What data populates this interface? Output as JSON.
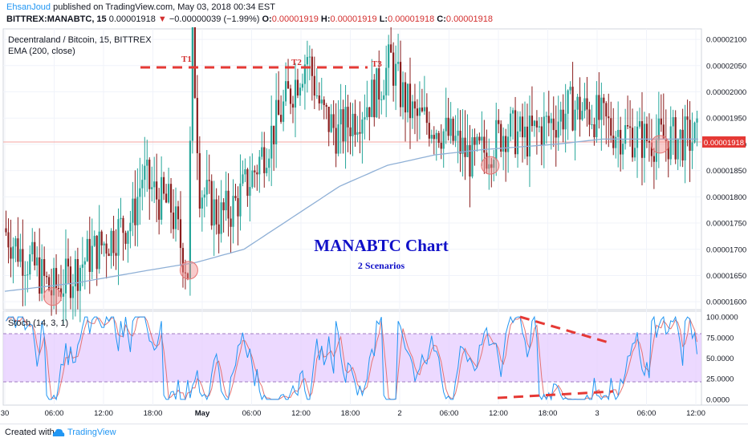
{
  "header": {
    "author": "EhsanJoud",
    "published": "published on TradingView.com, May 03, 2018 00:34 EST",
    "symbol": "BITTREX:MANABTC, 15",
    "price": "0.00001918",
    "change_arrow": "▼",
    "change": "−0.00000039 (−1.99%)",
    "ohlc": [
      {
        "label": "O:",
        "value": "0.00001919"
      },
      {
        "label": "H:",
        "value": "0.00001919"
      },
      {
        "label": "L:",
        "value": "0.00001918"
      },
      {
        "label": "C:",
        "value": "0.00001918"
      }
    ]
  },
  "legend": {
    "title": "Decentraland / Bitcoin, 15, BITTREX",
    "indicator": "EMA (200, close)",
    "stoch": "Stoch (14, 3, 1)"
  },
  "annotations": {
    "title": "MANABTC Chart",
    "subtitle": "2 Scenarios",
    "tops": [
      "T1",
      "T2",
      "T3"
    ],
    "last_price_tag": "0.00001918"
  },
  "footer": {
    "created_with": "Created with",
    "brand": "TradingView"
  },
  "colors": {
    "up": "#26a69a",
    "down": "#8b1e1e",
    "ema": "#8fb0d6",
    "stoch_k": "#2196f3",
    "stoch_d": "#e57373",
    "stoch_band": "#e6ccff",
    "annotation_red": "#e53935",
    "title_blue": "#1010c8",
    "circle": "#f28b8b"
  },
  "chart_data": [
    {
      "type": "candlestick",
      "title": "Decentraland / Bitcoin, 15, BITTREX",
      "x_ticks": [
        "30",
        "06:00",
        "12:00",
        "18:00",
        "May",
        "06:00",
        "12:00",
        "18:00",
        "2",
        "06:00",
        "12:00",
        "18:00",
        "3",
        "06:00",
        "12:00"
      ],
      "y_ticks": [
        "0.00002100",
        "0.00002050",
        "0.00002000",
        "0.00001950",
        "0.00001900",
        "0.00001850",
        "0.00001800",
        "0.00001750",
        "0.00001700",
        "0.00001650",
        "0.00001600"
      ],
      "ylim": [
        1.585e-05,
        2.12e-05
      ],
      "last_price": 1.918e-05,
      "price_path": [
        [
          0,
          1.74e-05
        ],
        [
          6,
          1.7e-05
        ],
        [
          14,
          1.66e-05
        ],
        [
          20,
          1.62e-05
        ],
        [
          26,
          1.64e-05
        ],
        [
          34,
          1.68e-05
        ],
        [
          44,
          1.72e-05
        ],
        [
          54,
          1.76e-05
        ],
        [
          58,
          1.84e-05
        ],
        [
          64,
          1.8e-05
        ],
        [
          70,
          1.78e-05
        ],
        [
          74,
          1.71e-05
        ],
        [
          77,
          1.66e-05
        ],
        [
          79,
          2.11e-05
        ],
        [
          82,
          1.82e-05
        ],
        [
          90,
          1.76e-05
        ],
        [
          96,
          1.78e-05
        ],
        [
          104,
          1.84e-05
        ],
        [
          112,
          1.92e-05
        ],
        [
          120,
          2e-05
        ],
        [
          127,
          2.07e-05
        ],
        [
          133,
          1.96e-05
        ],
        [
          140,
          1.92e-05
        ],
        [
          148,
          1.96e-05
        ],
        [
          156,
          2e-05
        ],
        [
          162,
          2.06e-05
        ],
        [
          166,
          2e-05
        ],
        [
          172,
          1.95e-05
        ],
        [
          180,
          1.94e-05
        ],
        [
          190,
          1.9e-05
        ],
        [
          196,
          1.87e-05
        ],
        [
          202,
          1.89e-05
        ],
        [
          210,
          1.93e-05
        ],
        [
          218,
          1.91e-05
        ],
        [
          228,
          1.94e-05
        ],
        [
          238,
          1.97e-05
        ],
        [
          246,
          1.96e-05
        ],
        [
          254,
          1.93e-05
        ],
        [
          262,
          1.92e-05
        ],
        [
          266,
          1.91e-05
        ]
      ],
      "ema_path": [
        [
          0,
          1.62e-05
        ],
        [
          30,
          1.636e-05
        ],
        [
          60,
          1.66e-05
        ],
        [
          80,
          1.675e-05
        ],
        [
          100,
          1.7e-05
        ],
        [
          120,
          1.76e-05
        ],
        [
          140,
          1.82e-05
        ],
        [
          160,
          1.86e-05
        ],
        [
          180,
          1.88e-05
        ],
        [
          200,
          1.89e-05
        ],
        [
          230,
          1.9e-05
        ],
        [
          250,
          1.91e-05
        ],
        [
          266,
          1.91e-05
        ]
      ],
      "circled_lows": [
        [
          20,
          1.61e-05
        ],
        [
          77,
          1.66e-05
        ],
        [
          203,
          1.86e-05
        ],
        [
          274,
          1.9e-05
        ]
      ]
    },
    {
      "type": "line",
      "title": "Stoch (14, 3, 1)",
      "y_ticks": [
        "100.0000",
        "75.0000",
        "50.0000",
        "25.0000",
        "0.0000"
      ],
      "ylim": [
        -5,
        105
      ],
      "band": [
        20,
        80
      ],
      "seed": 7
    }
  ]
}
